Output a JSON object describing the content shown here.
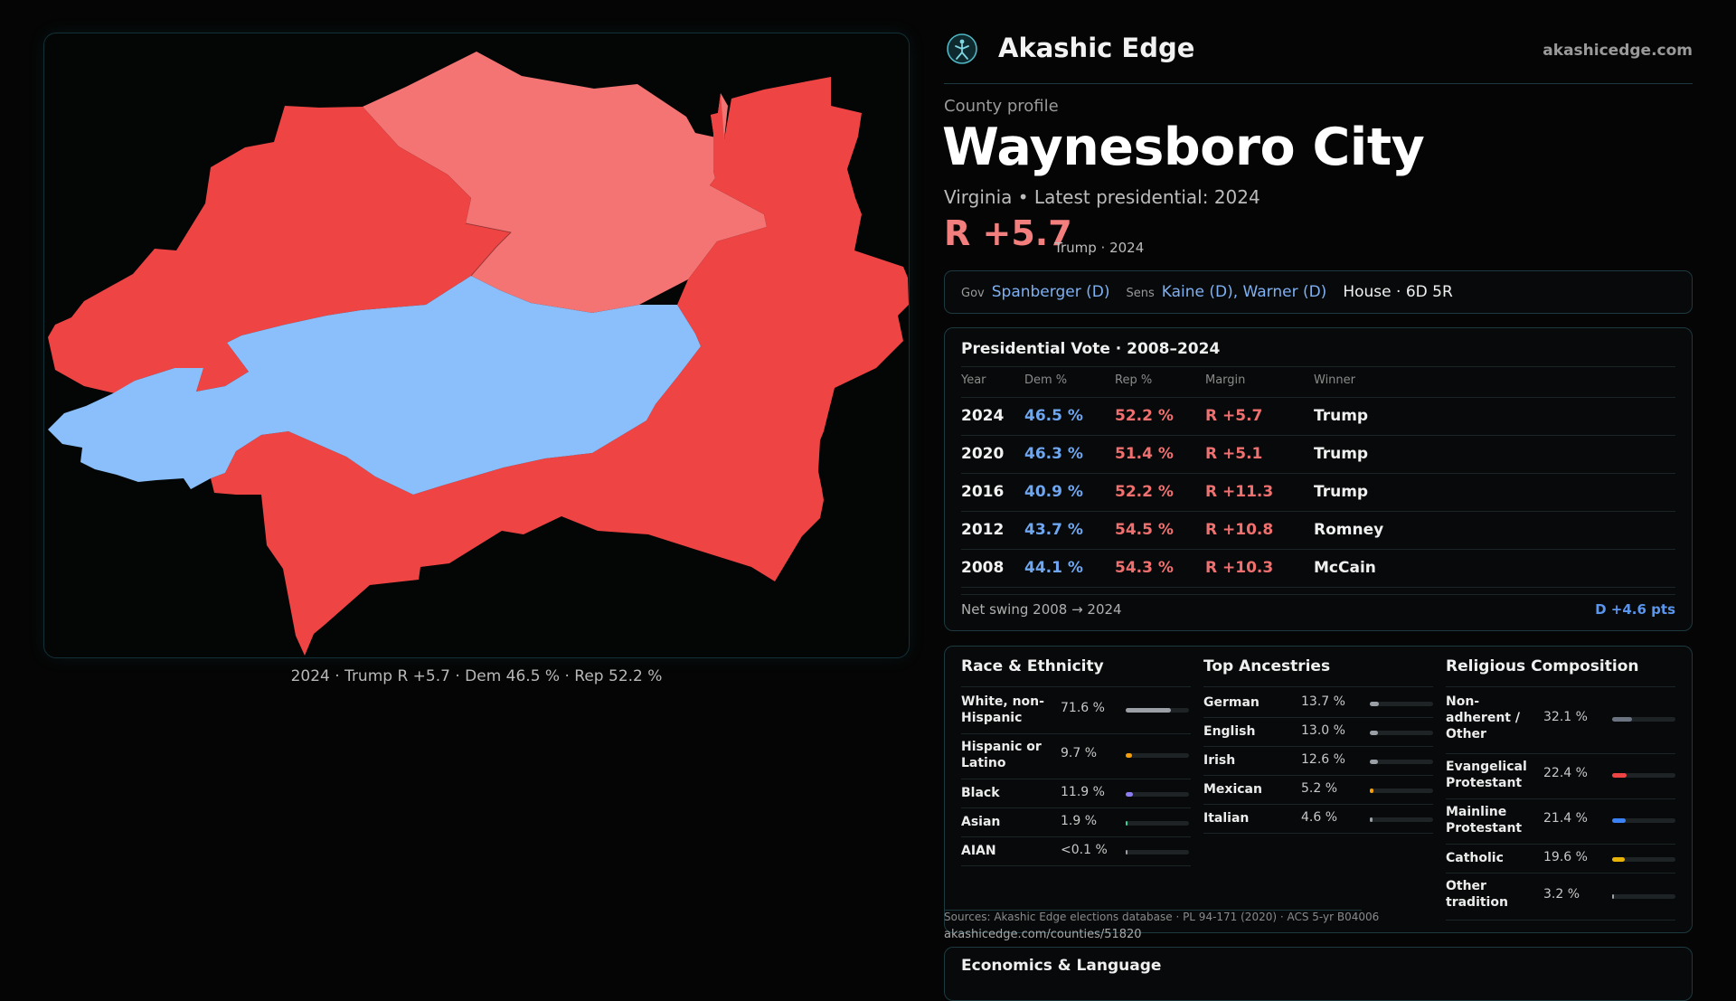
{
  "map": {
    "caption": "2024 · Trump R +5.7 · Dem 46.5 % · Rep 52.2 %",
    "colors": {
      "strong_rep": "#ef4444",
      "lean_rep": "#f47373",
      "dem": "#8abffb"
    }
  },
  "header": {
    "logo_icon": "akashic-edge-logo-icon",
    "brand": "Akashic Edge",
    "domain": "akashicedge.com"
  },
  "profile": {
    "kicker": "County profile",
    "title": "Waynesboro City",
    "subtitle": "Virginia • Latest presidential: 2024",
    "margin": "R +5.7",
    "margin_note": "Trump · 2024"
  },
  "officials": {
    "gov_label": "Gov",
    "gov": "Spanberger (D)",
    "sens_label": "Sens",
    "sens": "Kaine (D), Warner (D)",
    "house": "House · 6D 5R"
  },
  "presidential": {
    "title": "Presidential Vote · 2008–2024",
    "headers": [
      "Year",
      "Dem %",
      "Rep %",
      "Margin",
      "Winner"
    ],
    "rows": [
      {
        "year": "2024",
        "dem": "46.5 %",
        "rep": "52.2 %",
        "margin": "R +5.7",
        "winner": "Trump"
      },
      {
        "year": "2020",
        "dem": "46.3 %",
        "rep": "51.4 %",
        "margin": "R +5.1",
        "winner": "Trump"
      },
      {
        "year": "2016",
        "dem": "40.9 %",
        "rep": "52.2 %",
        "margin": "R +11.3",
        "winner": "Trump"
      },
      {
        "year": "2012",
        "dem": "43.7 %",
        "rep": "54.5 %",
        "margin": "R +10.8",
        "winner": "Romney"
      },
      {
        "year": "2008",
        "dem": "44.1 %",
        "rep": "54.3 %",
        "margin": "R +10.3",
        "winner": "McCain"
      }
    ],
    "swing_label": "Net swing 2008 → 2024",
    "swing_value": "D +4.6 pts"
  },
  "race": {
    "title": "Race & Ethnicity",
    "items": [
      {
        "label": "White, non-Hispanic",
        "value": "71.6 %",
        "pct": 71.6,
        "color": "#9aa0a6"
      },
      {
        "label": "Hispanic or Latino",
        "value": "9.7 %",
        "pct": 9.7,
        "color": "#f59e0b"
      },
      {
        "label": "Black",
        "value": "11.9 %",
        "pct": 11.9,
        "color": "#8b7cf0"
      },
      {
        "label": "Asian",
        "value": "1.9 %",
        "pct": 1.9,
        "color": "#34d399"
      },
      {
        "label": "AIAN",
        "value": "<0.1 %",
        "pct": 0.05,
        "color": "#9aa0a6"
      }
    ]
  },
  "ancestry": {
    "title": "Top Ancestries",
    "items": [
      {
        "label": "German",
        "value": "13.7 %",
        "pct": 13.7,
        "color": "#9aa0a6"
      },
      {
        "label": "English",
        "value": "13.0 %",
        "pct": 13.0,
        "color": "#9aa0a6"
      },
      {
        "label": "Irish",
        "value": "12.6 %",
        "pct": 12.6,
        "color": "#9aa0a6"
      },
      {
        "label": "Mexican",
        "value": "5.2 %",
        "pct": 5.2,
        "color": "#f59e0b"
      },
      {
        "label": "Italian",
        "value": "4.6 %",
        "pct": 4.6,
        "color": "#9aa0a6"
      }
    ]
  },
  "religion": {
    "title": "Religious Composition",
    "items": [
      {
        "label": "Non-adherent / Other",
        "value": "32.1 %",
        "pct": 32.1,
        "color": "#6b7280"
      },
      {
        "label": "Evangelical Protestant",
        "value": "22.4 %",
        "pct": 22.4,
        "color": "#ef4444"
      },
      {
        "label": "Mainline Protestant",
        "value": "21.4 %",
        "pct": 21.4,
        "color": "#3b82f6"
      },
      {
        "label": "Catholic",
        "value": "19.6 %",
        "pct": 19.6,
        "color": "#eab308"
      },
      {
        "label": "Other tradition",
        "value": "3.2 %",
        "pct": 3.2,
        "color": "#9aa0a6"
      }
    ]
  },
  "sources": {
    "text": "Sources: Akashic Edge elections database · PL 94-171 (2020) · ACS 5-yr B04006",
    "url": "akashicedge.com/counties/51820"
  },
  "economics": {
    "title": "Economics & Language"
  }
}
